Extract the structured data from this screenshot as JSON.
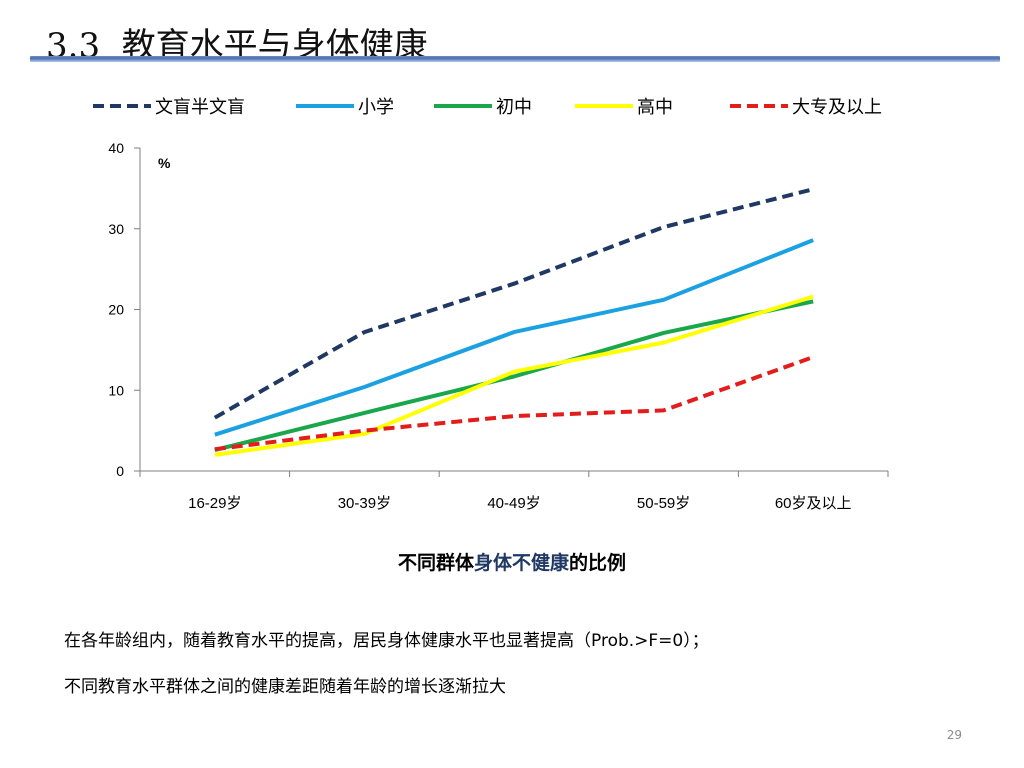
{
  "slide": {
    "title": "3.3  教育水平与身体健康",
    "caption_pre": "不同群体",
    "caption_highlight": "身体不健康",
    "caption_post": "的比例",
    "note_line1": "在各年龄组内，随着教育水平的提高，居民身体健康水平也显著提高（Prob.>F=0）；",
    "note_line2": "不同教育水平群体之间的健康差距随着年龄的增长逐渐拉大",
    "page_number": "29"
  },
  "chart_data": {
    "type": "line",
    "categories": [
      "16-29岁",
      "30-39岁",
      "40-49岁",
      "50-59岁",
      "60岁及以上"
    ],
    "unit_label": "%",
    "ylim": [
      0,
      40
    ],
    "yticks": [
      0,
      10,
      20,
      30,
      40
    ],
    "grid": false,
    "legend_position": "top",
    "series": [
      {
        "name": "文盲半文盲",
        "color": "#1f3864",
        "dashed": true,
        "values": [
          6.6,
          17.2,
          23.2,
          30.2,
          34.9
        ]
      },
      {
        "name": "小学",
        "color": "#1ba1e2",
        "dashed": false,
        "values": [
          4.5,
          10.4,
          17.2,
          21.2,
          28.6
        ]
      },
      {
        "name": "初中",
        "color": "#1aa64a",
        "dashed": false,
        "values": [
          2.6,
          7.2,
          11.7,
          17.1,
          21.0
        ]
      },
      {
        "name": "高中",
        "color": "#ffff00",
        "dashed": false,
        "values": [
          2.0,
          4.6,
          12.3,
          15.9,
          21.6
        ]
      },
      {
        "name": "大专及以上",
        "color": "#e31c1c",
        "dashed": true,
        "values": [
          2.7,
          5.0,
          6.8,
          7.5,
          14.1
        ]
      }
    ]
  }
}
